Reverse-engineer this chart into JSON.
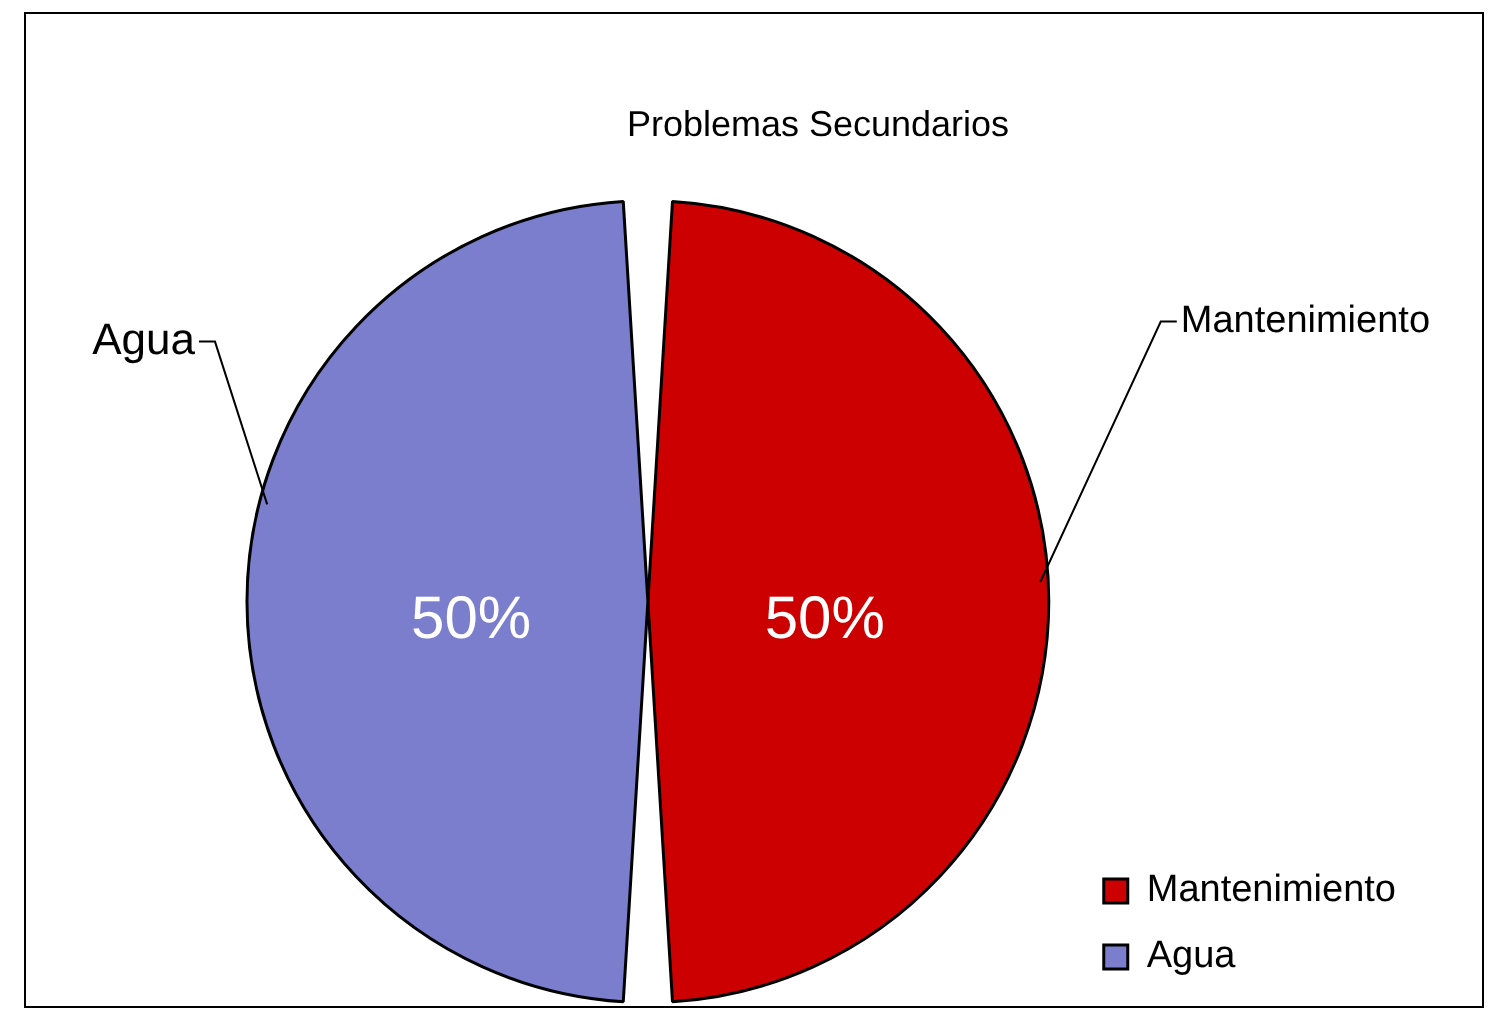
{
  "chart_data": {
    "type": "pie",
    "title": "Problemas Secundarios",
    "categories": [
      "Mantenimiento",
      "Agua"
    ],
    "values": [
      50,
      50
    ],
    "colors": [
      "#cc0000",
      "#7a7ecc"
    ],
    "value_labels": [
      "50%",
      "50%"
    ],
    "legend": "bottom right"
  }
}
